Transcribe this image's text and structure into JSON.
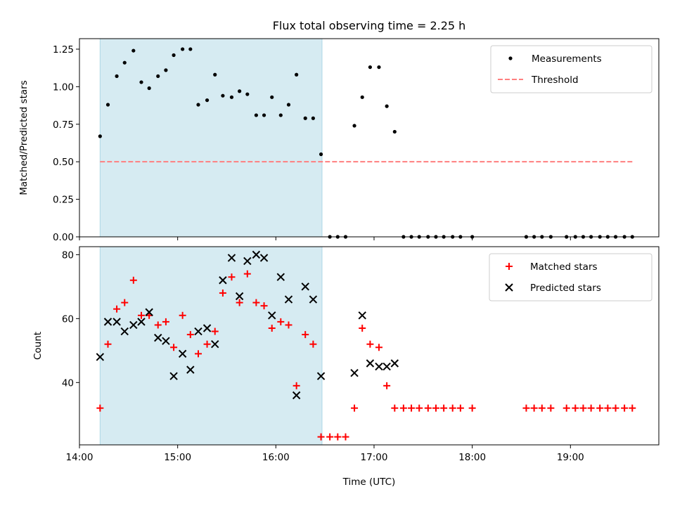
{
  "title": "Flux total observing time = 2.25 h",
  "colors": {
    "span": "#add8e6",
    "measurement": "#000000",
    "threshold": "#ff7f7f",
    "matched": "#ff0000",
    "predicted": "#000000"
  },
  "chart_data": [
    {
      "type": "scatter",
      "ylabel": "Matched/Predicted stars",
      "xlim": [
        14.0,
        19.9
      ],
      "ylim": [
        0,
        1.32
      ],
      "yticks": [
        0.0,
        0.25,
        0.5,
        0.75,
        1.0,
        1.25
      ],
      "ytick_labels": [
        "0.00",
        "0.25",
        "0.50",
        "0.75",
        "1.00",
        "1.25"
      ],
      "shaded_span": [
        14.21,
        16.47
      ],
      "legend": {
        "position": "upper-right",
        "entries": [
          "Measurements",
          "Threshold"
        ]
      },
      "series": [
        {
          "name": "Measurements",
          "marker": "dot",
          "x": [
            14.21,
            14.29,
            14.38,
            14.46,
            14.55,
            14.63,
            14.71,
            14.8,
            14.88,
            14.96,
            15.05,
            15.13,
            15.21,
            15.3,
            15.38,
            15.46,
            15.55,
            15.63,
            15.71,
            15.8,
            15.88,
            15.96,
            16.05,
            16.13,
            16.21,
            16.3,
            16.38,
            16.46,
            16.55,
            16.63,
            16.71,
            16.8,
            16.88,
            16.96,
            17.05,
            17.13,
            17.21,
            17.3,
            17.38,
            17.46,
            17.55,
            17.63,
            17.71,
            17.8,
            17.88,
            18.0,
            18.55,
            18.63,
            18.71,
            18.8,
            18.96,
            19.05,
            19.13,
            19.21,
            19.3,
            19.38,
            19.46,
            19.55,
            19.63
          ],
          "y": [
            0.67,
            0.88,
            1.07,
            1.16,
            1.24,
            1.03,
            0.99,
            1.07,
            1.11,
            1.21,
            1.25,
            1.25,
            0.88,
            0.91,
            1.08,
            0.94,
            0.93,
            0.97,
            0.95,
            0.81,
            0.81,
            0.93,
            0.81,
            0.88,
            1.08,
            0.79,
            0.79,
            0.55,
            0.0,
            0.0,
            0.0,
            0.74,
            0.93,
            1.13,
            1.13,
            0.87,
            0.7,
            0.0,
            0.0,
            0.0,
            0.0,
            0.0,
            0.0,
            0.0,
            0.0,
            0.0,
            0.0,
            0.0,
            0.0,
            0.0,
            0.0,
            0.0,
            0.0,
            0.0,
            0.0,
            0.0,
            0.0,
            0.0,
            0.0
          ]
        },
        {
          "name": "Threshold",
          "style": "dashed-line",
          "x": [
            14.21,
            19.63
          ],
          "y": [
            0.5,
            0.5
          ]
        }
      ]
    },
    {
      "type": "scatter",
      "ylabel": "Count",
      "xlabel": "Time (UTC)",
      "xlim": [
        14.0,
        19.9
      ],
      "ylim": [
        20.5,
        82.5
      ],
      "yticks": [
        40,
        60,
        80
      ],
      "ytick_labels": [
        "40",
        "60",
        "80"
      ],
      "xticks": [
        14,
        15,
        16,
        17,
        18,
        19
      ],
      "xtick_labels": [
        "14:00",
        "15:00",
        "16:00",
        "17:00",
        "18:00",
        "19:00"
      ],
      "shaded_span": [
        14.21,
        16.47
      ],
      "legend": {
        "position": "upper-right",
        "entries": [
          "Matched stars",
          "Predicted stars"
        ]
      },
      "series": [
        {
          "name": "Matched stars",
          "marker": "plus",
          "x": [
            14.21,
            14.29,
            14.38,
            14.46,
            14.55,
            14.63,
            14.71,
            14.8,
            14.88,
            14.96,
            15.05,
            15.13,
            15.21,
            15.3,
            15.38,
            15.46,
            15.55,
            15.63,
            15.71,
            15.8,
            15.88,
            15.96,
            16.05,
            16.13,
            16.21,
            16.3,
            16.38,
            16.46,
            16.55,
            16.63,
            16.71,
            16.8,
            16.88,
            16.96,
            17.05,
            17.13,
            17.21,
            17.3,
            17.38,
            17.46,
            17.55,
            17.63,
            17.71,
            17.8,
            17.88,
            18.0,
            18.55,
            18.63,
            18.71,
            18.8,
            18.96,
            19.05,
            19.13,
            19.21,
            19.3,
            19.38,
            19.46,
            19.55,
            19.63
          ],
          "y": [
            32,
            52,
            63,
            65,
            72,
            61,
            61,
            58,
            59,
            51,
            61,
            55,
            49,
            52,
            56,
            68,
            73,
            65,
            74,
            65,
            64,
            57,
            59,
            58,
            39,
            55,
            52,
            23,
            23,
            23,
            23,
            32,
            57,
            52,
            51,
            39,
            32,
            32,
            32,
            32,
            32,
            32,
            32,
            32,
            32,
            32,
            32,
            32,
            32,
            32,
            32,
            32,
            32,
            32,
            32,
            32,
            32,
            32,
            32
          ]
        },
        {
          "name": "Predicted stars",
          "marker": "x",
          "x": [
            14.21,
            14.29,
            14.38,
            14.46,
            14.55,
            14.63,
            14.71,
            14.8,
            14.88,
            14.96,
            15.05,
            15.13,
            15.21,
            15.3,
            15.38,
            15.46,
            15.55,
            15.63,
            15.71,
            15.8,
            15.88,
            15.96,
            16.05,
            16.13,
            16.21,
            16.3,
            16.38,
            16.46,
            16.8,
            16.88,
            16.96,
            17.05,
            17.13,
            17.21
          ],
          "y": [
            48,
            59,
            59,
            56,
            58,
            59,
            62,
            54,
            53,
            42,
            49,
            44,
            56,
            57,
            52,
            72,
            79,
            67,
            78,
            80,
            79,
            61,
            73,
            66,
            36,
            70,
            66,
            42,
            43,
            61,
            46,
            45,
            45,
            46
          ]
        }
      ]
    }
  ]
}
